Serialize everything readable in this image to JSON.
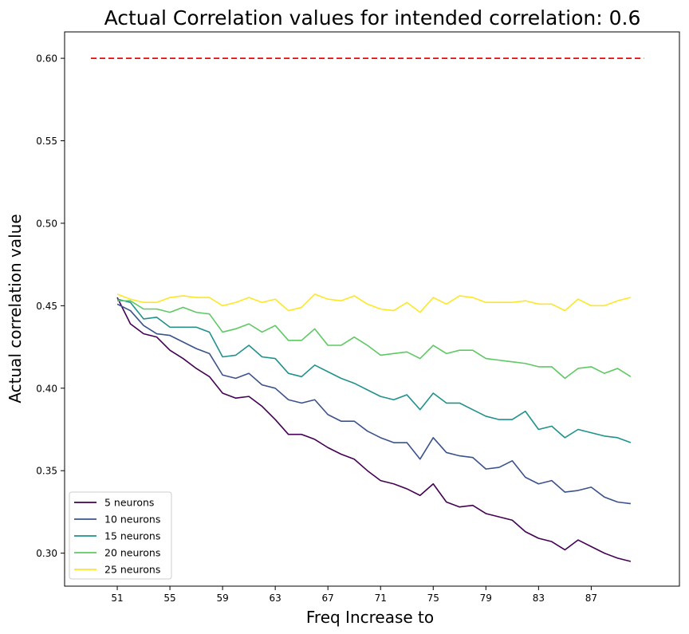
{
  "chart_data": {
    "type": "line",
    "title": "Actual Correlation values for intended correlation:  0.6",
    "xlabel": "Freq Increase to",
    "ylabel": "Actual correlation value",
    "xlim": [
      47.0,
      93.7
    ],
    "ylim": [
      0.28,
      0.616
    ],
    "xticks": [
      51,
      55,
      59,
      63,
      67,
      71,
      75,
      79,
      83,
      87
    ],
    "yticks": [
      0.3,
      0.35,
      0.4,
      0.45,
      0.5,
      0.55,
      0.6
    ],
    "ytick_labels": [
      "0.30",
      "0.35",
      "0.40",
      "0.45",
      "0.50",
      "0.55",
      "0.60"
    ],
    "grid": false,
    "legend_position": "lower-left",
    "x": [
      51,
      52,
      53,
      54,
      55,
      56,
      57,
      58,
      59,
      60,
      61,
      62,
      63,
      64,
      65,
      66,
      67,
      68,
      69,
      70,
      71,
      72,
      73,
      74,
      75,
      76,
      77,
      78,
      79,
      80,
      81,
      82,
      83,
      84,
      85,
      86,
      87,
      88,
      89,
      90
    ],
    "reference_line": {
      "y": 0.6,
      "x_range": [
        49,
        91
      ],
      "color": "#ff0000",
      "style": "dashed"
    },
    "series": [
      {
        "name": "5 neurons",
        "color": "#440154",
        "values": [
          0.455,
          0.439,
          0.433,
          0.431,
          0.423,
          0.418,
          0.412,
          0.407,
          0.397,
          0.394,
          0.395,
          0.389,
          0.381,
          0.372,
          0.372,
          0.369,
          0.364,
          0.36,
          0.357,
          0.35,
          0.344,
          0.342,
          0.339,
          0.335,
          0.342,
          0.331,
          0.328,
          0.329,
          0.324,
          0.322,
          0.32,
          0.313,
          0.309,
          0.307,
          0.302,
          0.308,
          0.304,
          0.3,
          0.297,
          0.295
        ]
      },
      {
        "name": "10 neurons",
        "color": "#3b528b",
        "values": [
          0.451,
          0.447,
          0.438,
          0.433,
          0.432,
          0.428,
          0.424,
          0.421,
          0.408,
          0.406,
          0.409,
          0.402,
          0.4,
          0.393,
          0.391,
          0.393,
          0.384,
          0.38,
          0.38,
          0.374,
          0.37,
          0.367,
          0.367,
          0.357,
          0.37,
          0.361,
          0.359,
          0.358,
          0.351,
          0.352,
          0.356,
          0.346,
          0.342,
          0.344,
          0.337,
          0.338,
          0.34,
          0.334,
          0.331,
          0.33
        ]
      },
      {
        "name": "15 neurons",
        "color": "#21918c",
        "values": [
          0.454,
          0.452,
          0.442,
          0.443,
          0.437,
          0.437,
          0.437,
          0.434,
          0.419,
          0.42,
          0.426,
          0.419,
          0.418,
          0.409,
          0.407,
          0.414,
          0.41,
          0.406,
          0.403,
          0.399,
          0.395,
          0.393,
          0.396,
          0.387,
          0.397,
          0.391,
          0.391,
          0.387,
          0.383,
          0.381,
          0.381,
          0.386,
          0.375,
          0.377,
          0.37,
          0.375,
          0.373,
          0.371,
          0.37,
          0.367
        ]
      },
      {
        "name": "20 neurons",
        "color": "#5ec962",
        "values": [
          0.453,
          0.453,
          0.448,
          0.448,
          0.446,
          0.449,
          0.446,
          0.445,
          0.434,
          0.436,
          0.439,
          0.434,
          0.438,
          0.429,
          0.429,
          0.436,
          0.426,
          0.426,
          0.431,
          0.426,
          0.42,
          0.421,
          0.422,
          0.418,
          0.426,
          0.421,
          0.423,
          0.423,
          0.418,
          0.417,
          0.416,
          0.415,
          0.413,
          0.413,
          0.406,
          0.412,
          0.413,
          0.409,
          0.412,
          0.407
        ]
      },
      {
        "name": "25 neurons",
        "color": "#fde725",
        "values": [
          0.457,
          0.454,
          0.452,
          0.452,
          0.455,
          0.456,
          0.455,
          0.455,
          0.45,
          0.452,
          0.455,
          0.452,
          0.454,
          0.447,
          0.449,
          0.457,
          0.454,
          0.453,
          0.456,
          0.451,
          0.448,
          0.447,
          0.452,
          0.446,
          0.455,
          0.451,
          0.456,
          0.455,
          0.452,
          0.452,
          0.452,
          0.453,
          0.451,
          0.451,
          0.447,
          0.454,
          0.45,
          0.45,
          0.453,
          0.455
        ]
      }
    ]
  }
}
